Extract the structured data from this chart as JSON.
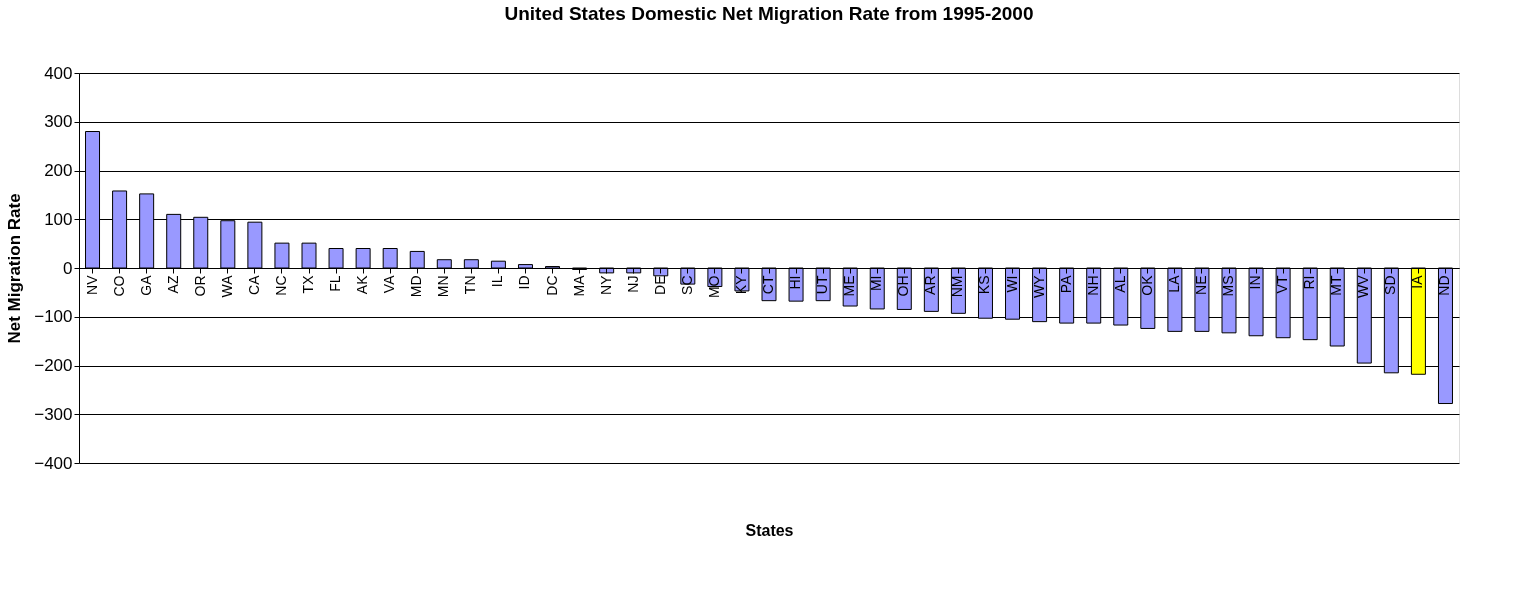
{
  "chart_data": {
    "type": "bar",
    "title": "United States Domestic Net Migration Rate from 1995-2000",
    "xlabel": "States",
    "ylabel": "Net Migration Rate",
    "categories": [
      "NV",
      "CO",
      "GA",
      "AZ",
      "OR",
      "WA",
      "CA",
      "NC",
      "TX",
      "FL",
      "AK",
      "VA",
      "MD",
      "MN",
      "TN",
      "IL",
      "ID",
      "DC",
      "MA",
      "NY",
      "NJ",
      "DE",
      "SC",
      "MO",
      "KY",
      "CT",
      "HI",
      "UT",
      "ME",
      "MI",
      "OH",
      "AR",
      "NM",
      "KS",
      "WI",
      "WY",
      "PA",
      "NH",
      "AL",
      "OK",
      "LA",
      "NE",
      "MS",
      "IN",
      "VT",
      "RI",
      "MT",
      "WV",
      "SD",
      "IA",
      "ND"
    ],
    "values": [
      280,
      158,
      152,
      110,
      104,
      97,
      94,
      51,
      51,
      40,
      40,
      40,
      34,
      17,
      17,
      14,
      7,
      3,
      -3,
      -10,
      -10,
      -16,
      -33,
      -38,
      -47,
      -67,
      -68,
      -67,
      -78,
      -84,
      -85,
      -89,
      -93,
      -103,
      -105,
      -110,
      -113,
      -113,
      -117,
      -124,
      -130,
      -130,
      -133,
      -139,
      -143,
      -147,
      -160,
      -195,
      -215,
      -218,
      -278
    ],
    "colors": [
      "#9999ff",
      "#9999ff",
      "#9999ff",
      "#9999ff",
      "#9999ff",
      "#9999ff",
      "#9999ff",
      "#9999ff",
      "#9999ff",
      "#9999ff",
      "#9999ff",
      "#9999ff",
      "#9999ff",
      "#9999ff",
      "#9999ff",
      "#9999ff",
      "#9999ff",
      "#9999ff",
      "#9999ff",
      "#9999ff",
      "#9999ff",
      "#9999ff",
      "#9999ff",
      "#9999ff",
      "#9999ff",
      "#9999ff",
      "#9999ff",
      "#9999ff",
      "#9999ff",
      "#9999ff",
      "#9999ff",
      "#9999ff",
      "#9999ff",
      "#9999ff",
      "#9999ff",
      "#9999ff",
      "#9999ff",
      "#9999ff",
      "#9999ff",
      "#9999ff",
      "#9999ff",
      "#9999ff",
      "#9999ff",
      "#9999ff",
      "#9999ff",
      "#9999ff",
      "#9999ff",
      "#9999ff",
      "#9999ff",
      "#ffff00",
      "#9999ff"
    ],
    "ylim": [
      -400,
      400
    ],
    "yticks": [
      -400,
      -300,
      -200,
      -100,
      0,
      100,
      200,
      300,
      400
    ],
    "grid": "y",
    "legend": false
  }
}
